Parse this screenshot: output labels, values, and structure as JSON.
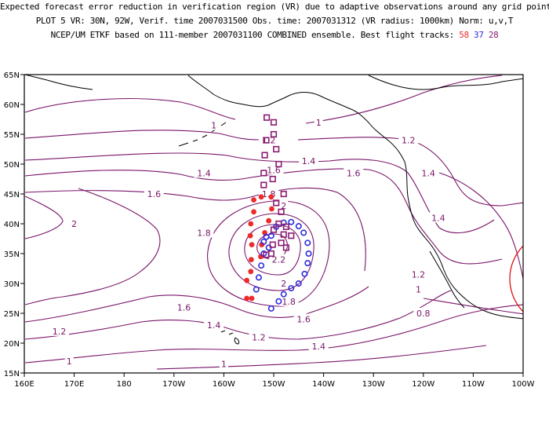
{
  "header": {
    "line1": "Expected forecast error reduction in verification region (VR) due to adaptive observations around any grid point.",
    "line2": "PLOT 5 VR: 30N, 92W, Verif. time 2007031500 Obs. time: 2007031312 (VR radius: 1000km) Norm: u,v,T",
    "line3": "NCEP/UM ETKF based on 111-member 2007031100 COMBINED ensemble.  Best flight tracks:",
    "tracks": [
      "58",
      "37",
      "28"
    ]
  },
  "colors": {
    "contour": "#7a1468",
    "coast": "#000000",
    "track_58": "#ee2a2a",
    "track_37": "#2c2cdd",
    "track_28": "#8a1c72",
    "verification_region": "#dd1111"
  },
  "axes": {
    "x_ticks": [
      "160E",
      "170E",
      "180",
      "170W",
      "160W",
      "150W",
      "140W",
      "130W",
      "120W",
      "110W",
      "100W"
    ],
    "y_ticks": [
      "15N",
      "20N",
      "25N",
      "30N",
      "35N",
      "40N",
      "45N",
      "50N",
      "55N",
      "60N",
      "65N"
    ]
  },
  "contour_labels": [
    {
      "text": "2",
      "lon": 170,
      "lat": 40
    },
    {
      "text": "1.8",
      "lon": 196,
      "lat": 38.5
    },
    {
      "text": "1.6",
      "lon": 192,
      "lat": 26
    },
    {
      "text": "1.2",
      "lon": 167,
      "lat": 22
    },
    {
      "text": "1",
      "lon": 169,
      "lat": 17
    },
    {
      "text": "1.6",
      "lon": 186,
      "lat": 45
    },
    {
      "text": "1.4",
      "lon": 196,
      "lat": 48.5
    },
    {
      "text": "1",
      "lon": 198,
      "lat": 56.5
    },
    {
      "text": "1",
      "lon": 200,
      "lat": 16.5
    },
    {
      "text": "1.4",
      "lon": 198,
      "lat": 23
    },
    {
      "text": "1.2",
      "lon": 207,
      "lat": 21
    },
    {
      "text": "1.2",
      "lon": 209,
      "lat": 54
    },
    {
      "text": "1.6",
      "lon": 210,
      "lat": 49
    },
    {
      "text": "1.8",
      "lon": 209,
      "lat": 45
    },
    {
      "text": "2",
      "lon": 212,
      "lat": 43
    },
    {
      "text": "2.2",
      "lon": 211,
      "lat": 34
    },
    {
      "text": "2",
      "lon": 212,
      "lat": 30
    },
    {
      "text": "1.8",
      "lon": 213,
      "lat": 27
    },
    {
      "text": "1.6",
      "lon": 216,
      "lat": 24
    },
    {
      "text": "1.4",
      "lon": 219,
      "lat": 19.5
    },
    {
      "text": "1",
      "lon": 219,
      "lat": 57
    },
    {
      "text": "1.4",
      "lon": 217,
      "lat": 50.5
    },
    {
      "text": "1.6",
      "lon": 226,
      "lat": 48.5
    },
    {
      "text": "1.2",
      "lon": 237,
      "lat": 54
    },
    {
      "text": "1.4",
      "lon": 241,
      "lat": 48.5
    },
    {
      "text": "1.4",
      "lon": 243,
      "lat": 41
    },
    {
      "text": "1.2",
      "lon": 239,
      "lat": 31.5
    },
    {
      "text": "1",
      "lon": 239,
      "lat": 29
    },
    {
      "text": "0.8",
      "lon": 240,
      "lat": 25
    }
  ],
  "tracks": [
    {
      "id": "58",
      "marker": "dot",
      "points": [
        [
          204.6,
          27.5
        ],
        [
          205.6,
          27.5
        ],
        [
          204.6,
          30.5
        ],
        [
          205.4,
          32
        ],
        [
          205.5,
          34
        ],
        [
          205.6,
          36.5
        ],
        [
          205.3,
          38
        ],
        [
          205.4,
          40
        ],
        [
          206,
          42
        ],
        [
          206,
          44
        ],
        [
          207.5,
          44.5
        ],
        [
          209.5,
          44.5
        ],
        [
          209.6,
          42.5
        ],
        [
          209,
          40.5
        ],
        [
          208.2,
          38.5
        ],
        [
          207.6,
          36.5
        ],
        [
          207.4,
          34.5
        ]
      ]
    },
    {
      "id": "37",
      "marker": "ring",
      "points": [
        [
          209.5,
          25.8
        ],
        [
          211,
          27
        ],
        [
          212,
          28.2
        ],
        [
          206.5,
          29
        ],
        [
          207,
          31
        ],
        [
          207.5,
          33
        ],
        [
          208,
          35
        ],
        [
          209,
          36
        ],
        [
          209.5,
          38
        ],
        [
          210.5,
          39.5
        ],
        [
          212,
          40.2
        ],
        [
          213.5,
          40.3
        ],
        [
          215,
          39.6
        ],
        [
          216,
          38.5
        ],
        [
          216.8,
          36.8
        ],
        [
          217,
          35
        ],
        [
          216.8,
          33.4
        ],
        [
          216.2,
          31.6
        ],
        [
          215,
          30
        ],
        [
          213.5,
          29.2
        ],
        [
          208,
          37
        ],
        [
          208.5,
          37.8
        ]
      ]
    },
    {
      "id": "28",
      "marker": "square",
      "points": [
        [
          208.6,
          57.8
        ],
        [
          210,
          57
        ],
        [
          210,
          55
        ],
        [
          208.5,
          54
        ],
        [
          210.5,
          52.5
        ],
        [
          208.2,
          51.5
        ],
        [
          211,
          50
        ],
        [
          208,
          48.5
        ],
        [
          209.8,
          47.5
        ],
        [
          208,
          46.5
        ],
        [
          212,
          45
        ],
        [
          210.5,
          43.5
        ],
        [
          211.5,
          42
        ],
        [
          211,
          40
        ],
        [
          210,
          39
        ],
        [
          212.5,
          39.5
        ],
        [
          212,
          38.2
        ],
        [
          213.5,
          38
        ],
        [
          211.5,
          36.8
        ],
        [
          212.5,
          36
        ],
        [
          209.8,
          36.5
        ],
        [
          209.5,
          35
        ],
        [
          208.5,
          34.8
        ]
      ]
    }
  ]
}
